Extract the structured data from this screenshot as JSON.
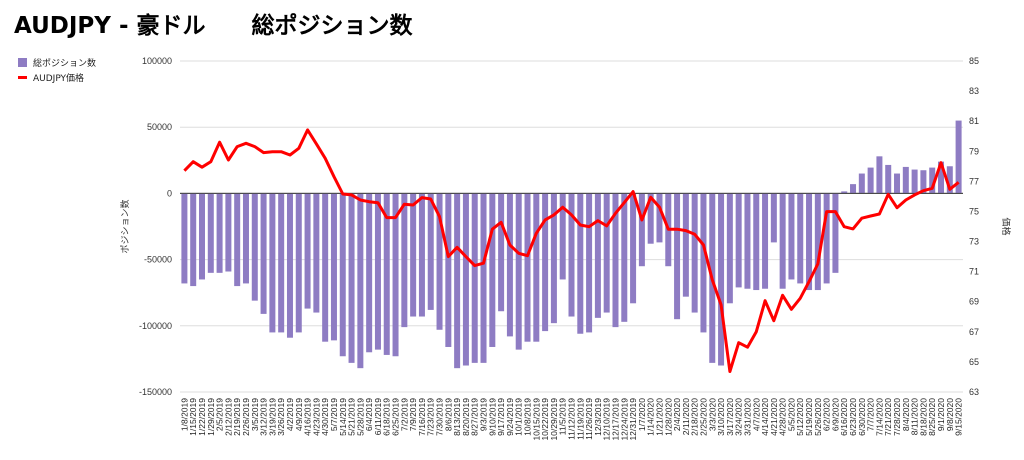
{
  "title": "AUDJPY - 豪ドル　　総ポジション数",
  "legend": {
    "bar_label": "総ポジション数",
    "line_label": "AUDJPY価格"
  },
  "colors": {
    "bar": "#8e7cc3",
    "line": "#ff0000",
    "grid": "#dddddd",
    "zero": "#444444"
  },
  "chart_data": {
    "type": "bar+line",
    "title": "AUDJPY - 豪ドル　　総ポジション数",
    "ylabel": "ポジション数",
    "y2label": "価格",
    "ylim": [
      -150000,
      100000
    ],
    "y2lim": [
      63,
      85
    ],
    "yticks": [
      "100000",
      "50000",
      "0",
      "-50000",
      "-100000",
      "-150000"
    ],
    "y2ticks": [
      "85",
      "83",
      "81",
      "79",
      "77",
      "75",
      "73",
      "71",
      "69",
      "67",
      "65",
      "63"
    ],
    "grid": true,
    "legend_position": "top-left",
    "categories": [
      "1/8/2019",
      "1/15/2019",
      "1/22/2019",
      "1/29/2019",
      "2/5/2019",
      "2/12/2019",
      "2/19/2019",
      "2/26/2019",
      "3/5/2019",
      "3/12/2019",
      "3/19/2019",
      "3/26/2019",
      "4/2/2019",
      "4/9/2019",
      "4/16/2019",
      "4/23/2019",
      "4/30/2019",
      "5/7/2019",
      "5/14/2019",
      "5/21/2019",
      "5/28/2019",
      "6/4/2019",
      "6/11/2019",
      "6/18/2019",
      "6/25/2019",
      "7/2/2019",
      "7/9/2019",
      "7/16/2019",
      "7/23/2019",
      "7/30/2019",
      "8/6/2019",
      "8/13/2019",
      "8/20/2019",
      "8/27/2019",
      "9/3/2019",
      "9/10/2019",
      "9/17/2019",
      "9/24/2019",
      "10/1/2019",
      "10/8/2019",
      "10/15/2019",
      "10/22/2019",
      "10/29/2019",
      "11/5/2019",
      "11/12/2019",
      "11/19/2019",
      "11/26/2019",
      "12/3/2019",
      "12/10/2019",
      "12/17/2019",
      "12/24/2019",
      "12/31/2019",
      "1/7/2020",
      "1/14/2020",
      "1/21/2020",
      "1/28/2020",
      "2/4/2020",
      "2/11/2020",
      "2/18/2020",
      "2/25/2020",
      "3/3/2020",
      "3/10/2020",
      "3/17/2020",
      "3/24/2020",
      "3/31/2020",
      "4/7/2020",
      "4/14/2020",
      "4/21/2020",
      "4/28/2020",
      "5/5/2020",
      "5/12/2020",
      "5/19/2020",
      "5/26/2020",
      "6/2/2020",
      "6/9/2020",
      "6/16/2020",
      "6/23/2020",
      "6/30/2020",
      "7/7/2020",
      "7/14/2020",
      "7/21/2020",
      "7/28/2020",
      "8/4/2020",
      "8/11/2020",
      "8/18/2020",
      "8/25/2020",
      "9/1/2020",
      "9/8/2020",
      "9/15/2020"
    ],
    "series": [
      {
        "name": "総ポジション数",
        "type": "bar",
        "axis": "left",
        "values": [
          -68000,
          -70000,
          -65000,
          -60000,
          -60000,
          -59000,
          -70000,
          -68000,
          -81000,
          -91000,
          -105000,
          -105000,
          -109000,
          -105000,
          -87000,
          -90000,
          -112000,
          -111000,
          -123000,
          -128000,
          -132000,
          -120000,
          -118000,
          -122000,
          -123000,
          -101000,
          -93000,
          -93000,
          -88000,
          -103000,
          -116000,
          -132000,
          -130000,
          -128000,
          -128000,
          -116000,
          -89000,
          -108000,
          -118000,
          -112000,
          -112000,
          -104000,
          -98000,
          -65000,
          -93000,
          -106000,
          -105000,
          -94000,
          -90000,
          -101000,
          -97000,
          -83000,
          -55000,
          -38000,
          -37000,
          -55000,
          -95000,
          -78000,
          -90000,
          -105000,
          -128000,
          -130000,
          -83000,
          -71000,
          -72000,
          -73000,
          -72000,
          -37000,
          -72000,
          -65000,
          -68000,
          -73000,
          -73000,
          -68000,
          -60000,
          1500,
          7000,
          15000,
          19500,
          28000,
          21500,
          15000,
          20000,
          18000,
          17500,
          19500,
          24000,
          20500,
          55000
        ]
      },
      {
        "name": "AUDJPY価格",
        "type": "line",
        "axis": "right",
        "values": [
          77.71,
          78.31,
          77.94,
          78.31,
          79.6,
          78.42,
          79.31,
          79.53,
          79.31,
          78.91,
          78.97,
          78.97,
          78.75,
          79.2,
          80.42,
          79.49,
          78.53,
          77.31,
          76.16,
          76.1,
          75.76,
          75.65,
          75.58,
          74.59,
          74.59,
          75.48,
          75.43,
          75.92,
          75.83,
          74.66,
          72.0,
          72.62,
          72.0,
          71.4,
          71.56,
          73.82,
          74.28,
          72.77,
          72.22,
          72.06,
          73.55,
          74.44,
          74.77,
          75.28,
          74.77,
          74.1,
          73.99,
          74.39,
          74.04,
          74.88,
          75.59,
          76.32,
          74.44,
          75.94,
          75.28,
          73.82,
          73.82,
          73.73,
          73.48,
          72.77,
          70.45,
          68.79,
          64.36,
          66.28,
          65.98,
          67.01,
          69.07,
          67.74,
          69.43,
          68.5,
          69.23,
          70.33,
          71.51,
          74.99,
          74.99,
          73.99,
          73.84,
          74.55,
          74.7,
          74.83,
          76.14,
          75.25,
          75.76,
          76.1,
          76.38,
          76.54,
          78.24,
          76.47,
          76.94
        ]
      }
    ]
  }
}
